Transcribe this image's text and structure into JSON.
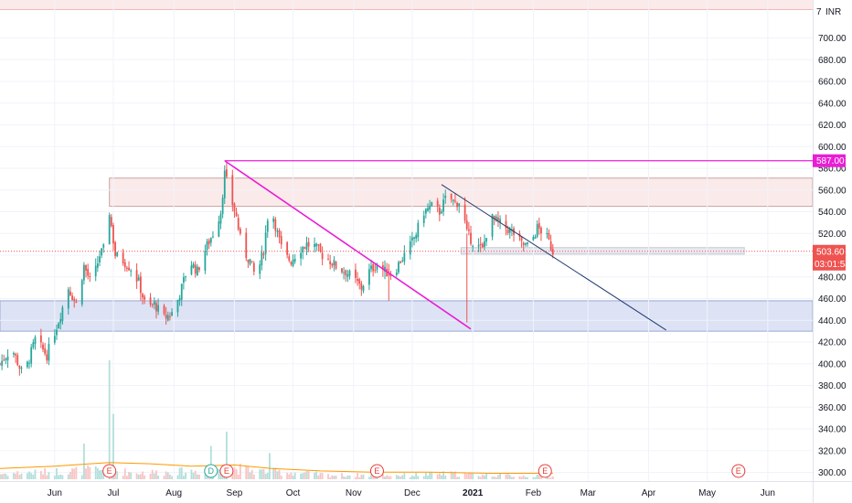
{
  "currency": "INR",
  "colors": {
    "up": "#26a69a",
    "down": "#ef5350",
    "magenta": "#e91ed6",
    "trend_navy": "#1e3a6e",
    "support_zone": "#dde3f5",
    "resist_zone": "#fbeaea",
    "last_price_bg": "#ef5350",
    "pink_badge": "#e91ed6"
  },
  "chart_data": {
    "type": "candlestick",
    "y_axis": {
      "ticks": [
        "300.00",
        "320.00",
        "340.00",
        "360.00",
        "380.00",
        "400.00",
        "420.00",
        "440.00",
        "460.00",
        "480.00",
        "500.00",
        "520.00",
        "540.00",
        "560.00",
        "580.00",
        "600.00",
        "620.00",
        "640.00",
        "660.00",
        "680.00",
        "700.00"
      ],
      "range": [
        292,
        735
      ],
      "currency_label": "INR",
      "top_label": "7"
    },
    "x_axis": {
      "labels": [
        {
          "text": "Jun",
          "date": "2020-06-01",
          "bold": false
        },
        {
          "text": "Jul",
          "date": "2020-07-01",
          "bold": false
        },
        {
          "text": "Aug",
          "date": "2020-08-01",
          "bold": false
        },
        {
          "text": "Sep",
          "date": "2020-09-01",
          "bold": false
        },
        {
          "text": "Oct",
          "date": "2020-10-01",
          "bold": false
        },
        {
          "text": "Nov",
          "date": "2020-11-01",
          "bold": false
        },
        {
          "text": "Dec",
          "date": "2020-12-01",
          "bold": false
        },
        {
          "text": "2021",
          "date": "2021-01-01",
          "bold": true
        },
        {
          "text": "Feb",
          "date": "2021-02-01",
          "bold": false
        },
        {
          "text": "Mar",
          "date": "2021-03-01",
          "bold": false
        },
        {
          "text": "Apr",
          "date": "2021-04-01",
          "bold": false
        },
        {
          "text": "May",
          "date": "2021-05-01",
          "bold": false
        },
        {
          "text": "Jun",
          "date": "2021-06-01",
          "bold": false
        }
      ],
      "range": [
        "2020-05-04",
        "2021-06-24"
      ]
    },
    "price_path": [
      [
        "2020-05-04",
        400
      ],
      [
        "2020-05-10",
        415
      ],
      [
        "2020-05-16",
        388
      ],
      [
        "2020-05-22",
        422
      ],
      [
        "2020-05-28",
        408
      ],
      [
        "2020-06-03",
        440
      ],
      [
        "2020-06-08",
        470
      ],
      [
        "2020-06-12",
        455
      ],
      [
        "2020-06-16",
        490
      ],
      [
        "2020-06-20",
        472
      ],
      [
        "2020-06-24",
        500
      ],
      [
        "2020-06-28",
        510
      ],
      [
        "2020-06-29",
        540
      ],
      [
        "2020-07-02",
        500
      ],
      [
        "2020-07-06",
        495
      ],
      [
        "2020-07-10",
        488
      ],
      [
        "2020-07-14",
        475
      ],
      [
        "2020-07-18",
        450
      ],
      [
        "2020-07-22",
        455
      ],
      [
        "2020-07-27",
        442
      ],
      [
        "2020-08-01",
        448
      ],
      [
        "2020-08-05",
        470
      ],
      [
        "2020-08-09",
        495
      ],
      [
        "2020-08-13",
        485
      ],
      [
        "2020-08-17",
        505
      ],
      [
        "2020-08-21",
        520
      ],
      [
        "2020-08-25",
        540
      ],
      [
        "2020-08-27",
        575
      ],
      [
        "2020-08-29",
        560
      ],
      [
        "2020-09-02",
        535
      ],
      [
        "2020-09-05",
        505
      ],
      [
        "2020-09-09",
        495
      ],
      [
        "2020-09-12",
        478
      ],
      [
        "2020-09-16",
        505
      ],
      [
        "2020-09-19",
        550
      ],
      [
        "2020-09-23",
        520
      ],
      [
        "2020-09-26",
        500
      ],
      [
        "2020-09-30",
        495
      ],
      [
        "2020-10-04",
        505
      ],
      [
        "2020-10-08",
        510
      ],
      [
        "2020-10-12",
        508
      ],
      [
        "2020-10-16",
        500
      ],
      [
        "2020-10-20",
        495
      ],
      [
        "2020-10-24",
        488
      ],
      [
        "2020-10-28",
        485
      ],
      [
        "2020-11-01",
        478
      ],
      [
        "2020-11-05",
        470
      ],
      [
        "2020-11-09",
        485
      ],
      [
        "2020-11-13",
        492
      ],
      [
        "2020-11-17",
        485
      ],
      [
        "2020-11-21",
        482
      ],
      [
        "2020-11-25",
        495
      ],
      [
        "2020-11-29",
        505
      ],
      [
        "2020-12-03",
        520
      ],
      [
        "2020-12-07",
        540
      ],
      [
        "2020-12-11",
        545
      ],
      [
        "2020-12-15",
        540
      ],
      [
        "2020-12-19",
        555
      ],
      [
        "2020-12-23",
        548
      ],
      [
        "2020-12-26",
        550
      ],
      [
        "2020-12-29",
        520
      ],
      [
        "2021-01-02",
        510
      ],
      [
        "2021-01-06",
        505
      ],
      [
        "2021-01-10",
        535
      ],
      [
        "2021-01-14",
        530
      ],
      [
        "2021-01-18",
        525
      ],
      [
        "2021-01-22",
        520
      ],
      [
        "2021-01-26",
        510
      ],
      [
        "2021-01-30",
        508
      ],
      [
        "2021-02-03",
        525
      ],
      [
        "2021-02-07",
        520
      ],
      [
        "2021-02-11",
        503.6
      ]
    ],
    "volume_path": [
      [
        "2020-05-04",
        4
      ],
      [
        "2020-05-22",
        5
      ],
      [
        "2020-06-08",
        6
      ],
      [
        "2020-06-24",
        7
      ],
      [
        "2020-07-10",
        5
      ],
      [
        "2020-07-27",
        5
      ],
      [
        "2020-08-13",
        6
      ],
      [
        "2020-08-27",
        9
      ],
      [
        "2020-09-12",
        6
      ],
      [
        "2020-09-30",
        5
      ],
      [
        "2020-10-20",
        3
      ],
      [
        "2020-11-09",
        3
      ],
      [
        "2020-11-29",
        3
      ],
      [
        "2020-12-19",
        4
      ],
      [
        "2021-01-10",
        3
      ],
      [
        "2021-02-11",
        2
      ]
    ],
    "volume_range": [
      0,
      100
    ],
    "volume_spikes": [
      {
        "date": "2020-06-29",
        "value": 100
      },
      {
        "date": "2020-07-01",
        "value": 55
      },
      {
        "date": "2020-08-28",
        "value": 40
      },
      {
        "date": "2020-06-16",
        "value": 30
      },
      {
        "date": "2020-08-20",
        "value": 28
      },
      {
        "date": "2020-09-19",
        "value": 22
      }
    ],
    "volume_ma": [
      [
        "2020-05-04",
        9
      ],
      [
        "2020-06-01",
        11
      ],
      [
        "2020-06-29",
        14
      ],
      [
        "2020-07-20",
        13
      ],
      [
        "2020-08-10",
        11
      ],
      [
        "2020-09-01",
        12
      ],
      [
        "2020-09-20",
        9
      ],
      [
        "2020-10-15",
        7
      ],
      [
        "2020-11-10",
        6
      ],
      [
        "2020-12-10",
        6
      ],
      [
        "2021-01-10",
        5
      ],
      [
        "2021-02-11",
        5
      ]
    ],
    "last_price": 503.6,
    "last_price_label": "503.60",
    "countdown": "03:01:54",
    "horizontal_level": {
      "value": 587.0,
      "label": "587.00",
      "from": "2020-08-27",
      "to": "2021-06-24"
    },
    "zones": [
      {
        "name": "resistance",
        "from": "2020-06-29",
        "to": "2021-06-24",
        "low": 545,
        "high": 571
      },
      {
        "name": "support",
        "from": "2020-05-04",
        "to": "2021-06-24",
        "low": 430,
        "high": 458
      },
      {
        "name": "consolidation",
        "from": "2020-12-26",
        "to": "2021-05-20",
        "low": 501,
        "high": 507
      }
    ],
    "trendlines": [
      {
        "name": "falling-magenta",
        "from": {
          "date": "2020-08-27",
          "price": 587
        },
        "to": {
          "date": "2020-12-31",
          "price": 432
        }
      },
      {
        "name": "falling-navy",
        "from": {
          "date": "2020-12-16",
          "price": 565
        },
        "to": {
          "date": "2021-04-10",
          "price": 431
        }
      }
    ],
    "spikes": [
      {
        "date": "2020-11-19",
        "high": 492,
        "low": 458
      },
      {
        "date": "2020-12-29",
        "high": 520,
        "low": 438
      }
    ],
    "events": [
      {
        "letter": "E",
        "date": "2020-06-29",
        "kind": "earnings"
      },
      {
        "letter": "D",
        "date": "2020-08-20",
        "kind": "dividend"
      },
      {
        "letter": "E",
        "date": "2020-08-28",
        "kind": "earnings"
      },
      {
        "letter": "E",
        "date": "2020-11-13",
        "kind": "earnings"
      },
      {
        "letter": "E",
        "date": "2021-02-07",
        "kind": "earnings"
      },
      {
        "letter": "E",
        "date": "2021-05-17",
        "kind": "earnings"
      }
    ]
  }
}
